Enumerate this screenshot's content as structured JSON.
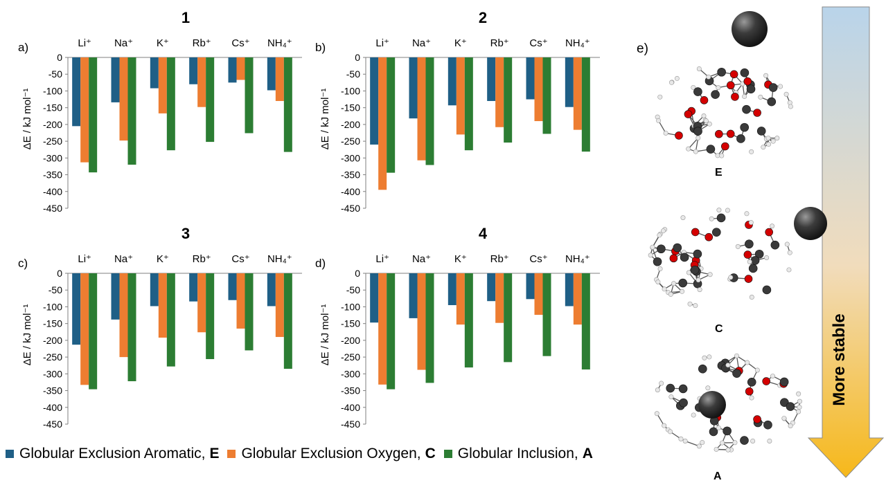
{
  "colors": {
    "E": "#1f5f86",
    "C": "#ed7d31",
    "A": "#2c7d33",
    "axis": "#7f7f7f",
    "arrow_top": "#b9d4ea",
    "arrow_bottom": "#f6b81a"
  },
  "charts": [
    {
      "title": "1",
      "letter": "a)",
      "ylabel": "ΔE / kJ mol⁻¹",
      "ticks": [
        "0",
        "-50",
        "-100",
        "-150",
        "-200",
        "-250",
        "-300",
        "-350",
        "-400",
        "-450"
      ]
    },
    {
      "title": "2",
      "letter": "b)",
      "ylabel": "ΔE / kJ mol⁻¹",
      "ticks": [
        "0",
        "-50",
        "-100",
        "-150",
        "-200",
        "-250",
        "-300",
        "-350",
        "-400",
        "-450"
      ]
    },
    {
      "title": "3",
      "letter": "c)",
      "ylabel": "ΔE / kJ mol⁻¹",
      "ticks": [
        "0",
        "-50",
        "-100",
        "-150",
        "-200",
        "-250",
        "-300",
        "-350",
        "-400",
        "-450"
      ]
    },
    {
      "title": "4",
      "letter": "d)",
      "ylabel": "ΔE / kJ mol⁻¹",
      "ticks": [
        "0",
        "-50",
        "-100",
        "-150",
        "-200",
        "-250",
        "-300",
        "-350",
        "-400",
        "-450"
      ]
    }
  ],
  "categories": [
    "Li⁺",
    "Na⁺",
    "K⁺",
    "Rb⁺",
    "Cs⁺",
    "NH₄⁺"
  ],
  "legend": [
    {
      "text": "Globular Exclusion Aromatic,",
      "bold": "E"
    },
    {
      "text": "Globular Exclusion Oxygen,",
      "bold": "C"
    },
    {
      "text": "Globular Inclusion,",
      "bold": "A"
    }
  ],
  "panel_e": {
    "letter": "e)",
    "labels": [
      "E",
      "C",
      "A"
    ],
    "arrow_text": "More stable"
  },
  "chart_data": [
    {
      "type": "bar",
      "title": "1",
      "xlabel": "",
      "ylabel": "ΔE / kJ mol⁻¹",
      "ylim": [
        -450,
        0
      ],
      "categories": [
        "Li⁺",
        "Na⁺",
        "K⁺",
        "Rb⁺",
        "Cs⁺",
        "NH₄⁺"
      ],
      "series": [
        {
          "name": "Globular Exclusion Aromatic, E",
          "values": [
            -205,
            -134,
            -92,
            -80,
            -75,
            -98
          ]
        },
        {
          "name": "Globular Exclusion Oxygen, C",
          "values": [
            -313,
            -248,
            -167,
            -148,
            -67,
            -130
          ]
        },
        {
          "name": "Globular Inclusion, A",
          "values": [
            -343,
            -320,
            -277,
            -252,
            -226,
            -282
          ]
        }
      ]
    },
    {
      "type": "bar",
      "title": "2",
      "xlabel": "",
      "ylabel": "ΔE / kJ mol⁻¹",
      "ylim": [
        -450,
        0
      ],
      "categories": [
        "Li⁺",
        "Na⁺",
        "K⁺",
        "Rb⁺",
        "Cs⁺",
        "NH₄⁺"
      ],
      "series": [
        {
          "name": "Globular Exclusion Aromatic, E",
          "values": [
            -260,
            -182,
            -143,
            -130,
            -125,
            -148
          ]
        },
        {
          "name": "Globular Exclusion Oxygen, C",
          "values": [
            -395,
            -307,
            -230,
            -208,
            -190,
            -216
          ]
        },
        {
          "name": "Globular Inclusion, A",
          "values": [
            -344,
            -321,
            -277,
            -254,
            -228,
            -281
          ]
        }
      ]
    },
    {
      "type": "bar",
      "title": "3",
      "xlabel": "",
      "ylabel": "ΔE / kJ mol⁻¹",
      "ylim": [
        -450,
        0
      ],
      "categories": [
        "Li⁺",
        "Na⁺",
        "K⁺",
        "Rb⁺",
        "Cs⁺",
        "NH₄⁺"
      ],
      "series": [
        {
          "name": "Globular Exclusion Aromatic, E",
          "values": [
            -213,
            -138,
            -98,
            -84,
            -80,
            -98
          ]
        },
        {
          "name": "Globular Exclusion Oxygen, C",
          "values": [
            -333,
            -250,
            -192,
            -176,
            -165,
            -190
          ]
        },
        {
          "name": "Globular Inclusion, A",
          "values": [
            -346,
            -322,
            -278,
            -256,
            -230,
            -285
          ]
        }
      ]
    },
    {
      "type": "bar",
      "title": "4",
      "xlabel": "",
      "ylabel": "ΔE / kJ mol⁻¹",
      "ylim": [
        -450,
        0
      ],
      "categories": [
        "Li⁺",
        "Na⁺",
        "K⁺",
        "Rb⁺",
        "Cs⁺",
        "NH₄⁺"
      ],
      "series": [
        {
          "name": "Globular Exclusion Aromatic, E",
          "values": [
            -147,
            -134,
            -95,
            -83,
            -77,
            -98
          ]
        },
        {
          "name": "Globular Exclusion Oxygen, C",
          "values": [
            -332,
            -288,
            -153,
            -148,
            -124,
            -153
          ]
        },
        {
          "name": "Globular Inclusion, A",
          "values": [
            -346,
            -327,
            -281,
            -265,
            -247,
            -287
          ]
        }
      ]
    }
  ]
}
